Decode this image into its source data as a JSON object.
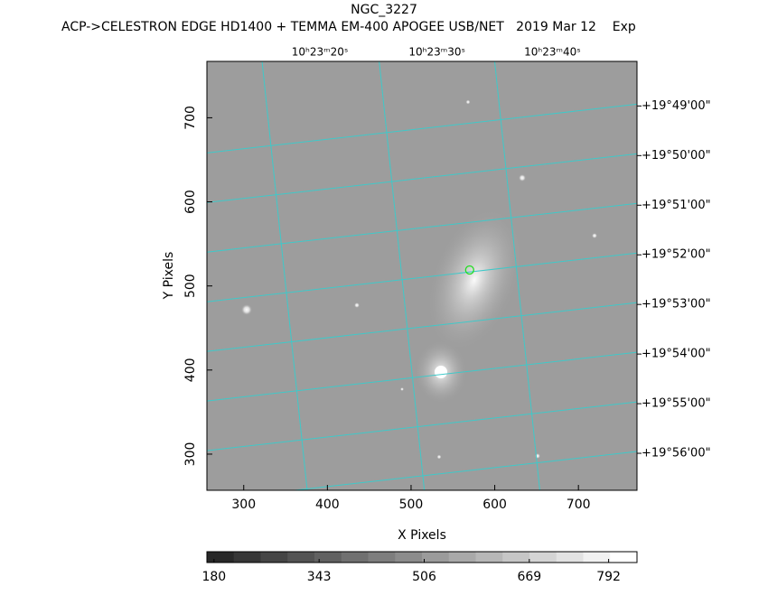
{
  "chart_data": {
    "type": "image",
    "title": "NGC_3227",
    "subtitle": "ACP->CELESTRON EDGE HD1400 + TEMMA EM-400 APOGEE USB/NET   2019 Mar 12    Exp",
    "xlabel": "X Pixels",
    "ylabel": "Y Pixels",
    "xlim": [
      256,
      770
    ],
    "ylim": [
      257,
      767
    ],
    "xticks": [
      300,
      400,
      500,
      600,
      700
    ],
    "yticks": [
      300,
      400,
      500,
      600,
      700
    ],
    "top_ticks": [
      {
        "value": 391,
        "label": "10ʰ23ᵐ20ˢ"
      },
      {
        "value": 531,
        "label": "10ʰ23ᵐ30ˢ"
      },
      {
        "value": 669,
        "label": "10ʰ23ᵐ40ˢ"
      }
    ],
    "right_ticks": [
      {
        "value": 714,
        "label": "+19°49'00\""
      },
      {
        "value": 655,
        "label": "+19°50'00\""
      },
      {
        "value": 596,
        "label": "+19°51'00\""
      },
      {
        "value": 537,
        "label": "+19°52'00\""
      },
      {
        "value": 478,
        "label": "+19°53'00\""
      },
      {
        "value": 419,
        "label": "+19°54'00\""
      },
      {
        "value": 360,
        "label": "+19°55'00\""
      },
      {
        "value": 301,
        "label": "+19°56'00\""
      }
    ],
    "grid_color": "#3fc9c9",
    "marker": {
      "x": 570,
      "y": 519,
      "color": "#22dd22"
    },
    "colorbar": {
      "lim": [
        169,
        836
      ],
      "ticks": [
        180,
        343,
        506,
        669,
        792
      ]
    }
  }
}
